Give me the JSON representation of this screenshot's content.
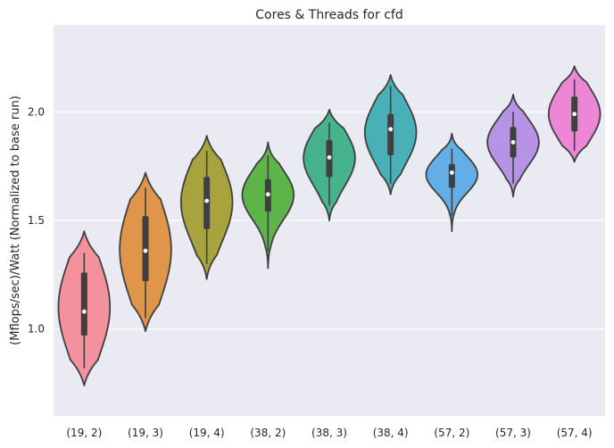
{
  "chart_data": {
    "type": "violin",
    "title": "Cores & Threads for cfd",
    "xlabel": "",
    "ylabel": "(Mflops/sec)/Watt (Normalized to base run)",
    "ylim": [
      0.6,
      2.4
    ],
    "yticks": [
      1.0,
      1.5,
      2.0
    ],
    "ytick_labels": [
      "1.0",
      "1.5",
      "2.0"
    ],
    "grid": true,
    "background": "#eaeaf2",
    "categories": [
      "(19, 2)",
      "(19, 3)",
      "(19, 4)",
      "(38, 2)",
      "(38, 3)",
      "(38, 4)",
      "(57, 2)",
      "(57, 3)",
      "(57, 4)"
    ],
    "series": [
      {
        "category": "(19, 2)",
        "color": "#f3919c",
        "min": 0.74,
        "max": 1.45,
        "q1": 0.97,
        "median": 1.08,
        "q3": 1.26,
        "whisker_low": 0.82,
        "whisker_high": 1.35
      },
      {
        "category": "(19, 3)",
        "color": "#e0964a",
        "min": 0.99,
        "max": 1.72,
        "q1": 1.22,
        "median": 1.36,
        "q3": 1.52,
        "whisker_low": 1.05,
        "whisker_high": 1.65
      },
      {
        "category": "(19, 4)",
        "color": "#a8a33c",
        "min": 1.23,
        "max": 1.89,
        "q1": 1.46,
        "median": 1.59,
        "q3": 1.7,
        "whisker_low": 1.3,
        "whisker_high": 1.82
      },
      {
        "category": "(38, 2)",
        "color": "#5db54a",
        "min": 1.28,
        "max": 1.86,
        "q1": 1.54,
        "median": 1.62,
        "q3": 1.69,
        "whisker_low": 1.36,
        "whisker_high": 1.8
      },
      {
        "category": "(38, 3)",
        "color": "#47b38c",
        "min": 1.5,
        "max": 2.01,
        "q1": 1.7,
        "median": 1.79,
        "q3": 1.87,
        "whisker_low": 1.57,
        "whisker_high": 1.95
      },
      {
        "category": "(38, 4)",
        "color": "#49b0b8",
        "min": 1.62,
        "max": 2.17,
        "q1": 1.8,
        "median": 1.92,
        "q3": 1.99,
        "whisker_low": 1.67,
        "whisker_high": 2.12
      },
      {
        "category": "(57, 2)",
        "color": "#63aee6",
        "min": 1.45,
        "max": 1.9,
        "q1": 1.65,
        "median": 1.72,
        "q3": 1.76,
        "whisker_low": 1.52,
        "whisker_high": 1.83
      },
      {
        "category": "(57, 3)",
        "color": "#b793e6",
        "min": 1.61,
        "max": 2.08,
        "q1": 1.79,
        "median": 1.86,
        "q3": 1.93,
        "whisker_low": 1.67,
        "whisker_high": 2.0
      },
      {
        "category": "(57, 4)",
        "color": "#ee86d6",
        "min": 1.77,
        "max": 2.21,
        "q1": 1.91,
        "median": 1.99,
        "q3": 2.07,
        "whisker_low": 1.82,
        "whisker_high": 2.15
      }
    ]
  }
}
